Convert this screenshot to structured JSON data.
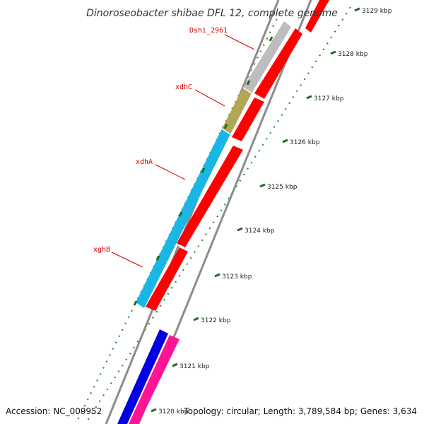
{
  "map": {
    "title": "Dinoroseobacter shibae DFL 12, complete genome",
    "accession": "Accession: NC_009952",
    "summary": "Topology: circular; Length: 3,789,584 bp; Genes: 3,634",
    "ticks": [
      {
        "label": "3120 kbp"
      },
      {
        "label": "3121 kbp"
      },
      {
        "label": "3122 kbp"
      },
      {
        "label": "3123 kbp"
      },
      {
        "label": "3124 kbp"
      },
      {
        "label": "3125 kbp"
      },
      {
        "label": "3126 kbp"
      },
      {
        "label": "3127 kbp"
      },
      {
        "label": "3128 kbp"
      },
      {
        "label": "3129 kbp"
      }
    ],
    "gene_labels": [
      {
        "text": "Dshi_2961"
      },
      {
        "text": "xdhC"
      },
      {
        "text": "xdhA"
      },
      {
        "text": "xghB"
      }
    ],
    "colors": {
      "backbone": "#8c8c8c",
      "tick_dots": "#2e8b2e",
      "tick_major": "#1f6b1f",
      "label_red": "#d40000",
      "gene_gray": "#bdbdbd",
      "gene_olive": "#b3a653",
      "gene_cyan": "#19b6e6",
      "gene_red": "#ff0000",
      "gene_blue": "#0000e0",
      "gene_pink": "#ff1493"
    }
  }
}
